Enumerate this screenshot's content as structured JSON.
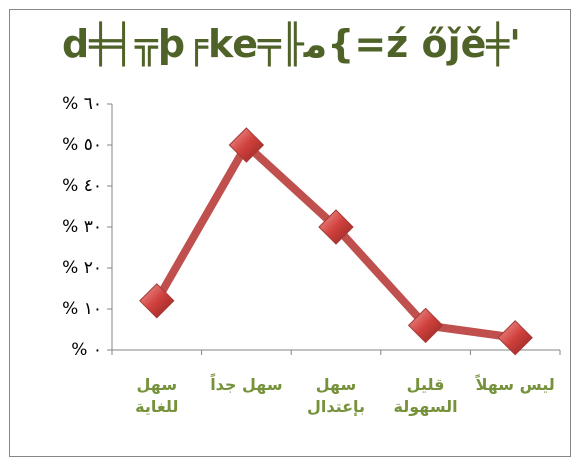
{
  "chart_data": {
    "type": "line",
    "title": "d╪╡╦þ╒ke╤╟ﻣ{=ź őǰě╪'",
    "categories": [
      "سهل للغاية",
      "سهل جداً",
      "سهل بإعتدال",
      "قليل السهولة",
      "ليس سهلاً"
    ],
    "series": [
      {
        "name": "series",
        "color": "#c0504d",
        "values": [
          12,
          50,
          30,
          6,
          3
        ]
      }
    ],
    "ylim": [
      0,
      60
    ],
    "yticks": [
      {
        "value": 0,
        "label": "% ٠"
      },
      {
        "value": 10,
        "label": "% ١٠"
      },
      {
        "value": 20,
        "label": "% ٢٠"
      },
      {
        "value": 30,
        "label": "% ٣٠"
      },
      {
        "value": 40,
        "label": "% ٤٠"
      },
      {
        "value": 50,
        "label": "% ٥٠"
      },
      {
        "value": 60,
        "label": "% ٦٠"
      }
    ],
    "grid": false
  }
}
